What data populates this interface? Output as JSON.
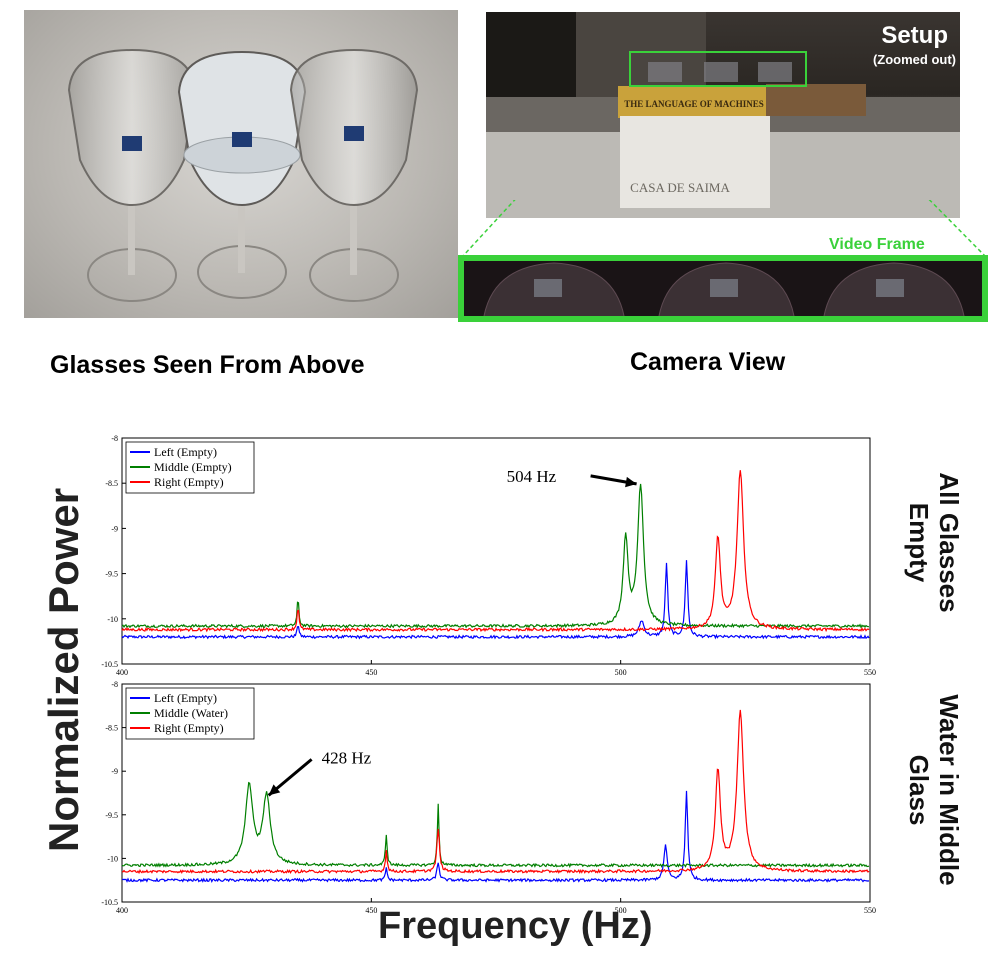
{
  "captions": {
    "left": "Glasses Seen From Above",
    "right": "Camera View"
  },
  "photo_labels": {
    "setup": "Setup",
    "zoomed_out": "(Zoomed out)",
    "video_frame": "Video Frame",
    "book_title": "THE LANGUAGE OF MACHINES",
    "box_text": "CASA DE SAIMA"
  },
  "colors": {
    "left": "#0000ff",
    "middle": "#007f00",
    "right": "#ff0000",
    "frame": "#3ad13a"
  },
  "axis_labels": {
    "y": "Normalized Power",
    "x": "Frequency (Hz)"
  },
  "side_labels": {
    "top_line1": "All Glasses",
    "top_line2": "Empty",
    "bottom_line1": "Water in Middle",
    "bottom_line2": "Glass"
  },
  "chart_data": [
    {
      "type": "line",
      "xlim": [
        400,
        550
      ],
      "ylim": [
        -10.5,
        -8
      ],
      "xticks": [
        "400",
        "450",
        "500",
        "550"
      ],
      "yticks": [
        "-8",
        "-8.5",
        "-9",
        "-9.5",
        "-10",
        "-10.5"
      ],
      "legend_position": "top-left",
      "series": [
        {
          "name": "Left (Empty)",
          "color": "#0000ff",
          "baseline": -10.2,
          "peaks": [
            [
              435.3,
              -10.05,
              0.2
            ],
            [
              504.2,
              -10.02,
              0.6
            ],
            [
              509.2,
              -9.38,
              0.3
            ],
            [
              513.2,
              -9.35,
              0.3
            ]
          ]
        },
        {
          "name": "Middle (Empty)",
          "color": "#007f00",
          "baseline": -10.08,
          "peaks": [
            [
              435.3,
              -9.77,
              0.2
            ],
            [
              501,
              -9.12,
              0.6
            ],
            [
              504,
              -8.53,
              0.7
            ]
          ]
        },
        {
          "name": "Right (Empty)",
          "color": "#ff0000",
          "baseline": -10.12,
          "peaks": [
            [
              435.3,
              -9.85,
              0.2
            ],
            [
              519.5,
              -9.12,
              0.6
            ],
            [
              524,
              -8.38,
              0.8
            ]
          ]
        }
      ],
      "annotation": {
        "text": "504 Hz",
        "x": 504,
        "y": -8.53
      }
    },
    {
      "type": "line",
      "xlim": [
        400,
        550
      ],
      "ylim": [
        -10.5,
        -8
      ],
      "xticks": [
        "400",
        "450",
        "500",
        "550"
      ],
      "yticks": [
        "-8",
        "-8.5",
        "-9",
        "-9.5",
        "-10",
        "-10.5"
      ],
      "legend_position": "top-left",
      "series": [
        {
          "name": "Left (Empty)",
          "color": "#0000ff",
          "baseline": -10.25,
          "peaks": [
            [
              453,
              -10.1,
              0.2
            ],
            [
              463.4,
              -10.05,
              0.3
            ],
            [
              509,
              -9.85,
              0.4
            ],
            [
              513.2,
              -9.22,
              0.3
            ]
          ]
        },
        {
          "name": "Middle (Water)",
          "color": "#007f00",
          "baseline": -10.08,
          "peaks": [
            [
              425.5,
              -9.18,
              0.9
            ],
            [
              429,
              -9.3,
              0.9
            ],
            [
              453,
              -9.72,
              0.2
            ],
            [
              463.4,
              -9.38,
              0.2
            ]
          ]
        },
        {
          "name": "Right (Empty)",
          "color": "#ff0000",
          "baseline": -10.15,
          "peaks": [
            [
              453,
              -9.9,
              0.2
            ],
            [
              463.4,
              -9.65,
              0.3
            ],
            [
              519.5,
              -9.0,
              0.6
            ],
            [
              524,
              -8.32,
              0.8
            ]
          ]
        }
      ],
      "annotation": {
        "text": "428 Hz",
        "x": 429,
        "y": -9.3
      }
    }
  ]
}
